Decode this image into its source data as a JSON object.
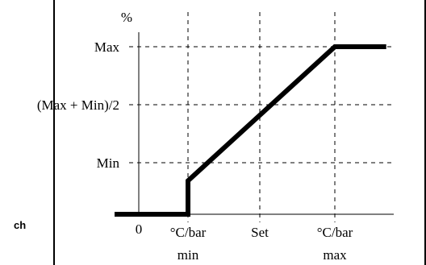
{
  "chart_data": {
    "type": "line",
    "unit_label": "%",
    "y_tick_labels": [
      "Min",
      "(Max + Min)/2",
      "Max"
    ],
    "x_tick_labels": [
      {
        "top": "0",
        "bottom": ""
      },
      {
        "top": "°C/bar",
        "bottom": "min"
      },
      {
        "top": "Set",
        "bottom": ""
      },
      {
        "top": "°C/bar",
        "bottom": "max"
      }
    ],
    "x": [
      -1.0,
      0.0,
      0.0,
      1.0,
      2.0,
      2.7
    ],
    "y": [
      0,
      0,
      0.2,
      0.6,
      1.0,
      1.0
    ],
    "x_scale_note": "0 = °C/bar min, 1 = Set, 2 = °C/bar max (relative)",
    "grid": "dashed at tick positions",
    "side_text": "ch"
  }
}
